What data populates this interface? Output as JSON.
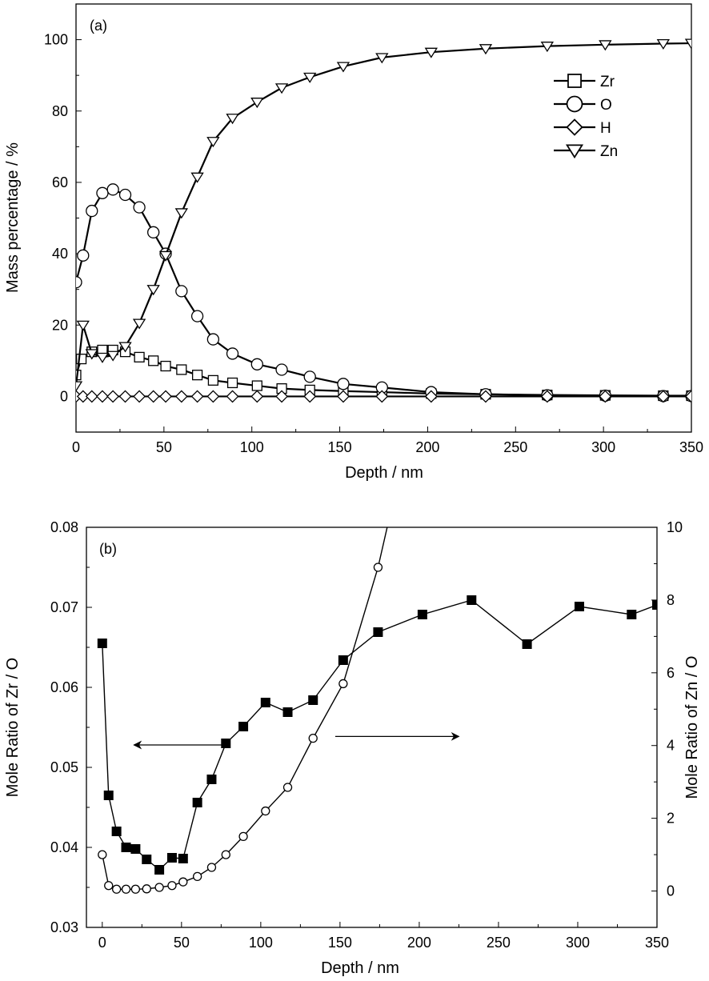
{
  "chart_data": [
    {
      "type": "line",
      "panel_label": "(a)",
      "xlabel": "Depth / nm",
      "ylabel": "Mass percentage / %",
      "xlim": [
        0,
        350
      ],
      "ylim": [
        -10,
        110
      ],
      "xticks": [
        0,
        50,
        100,
        150,
        200,
        250,
        300,
        350
      ],
      "yticks": [
        0,
        20,
        40,
        60,
        80,
        100
      ],
      "legend_position": "top-right",
      "series": [
        {
          "name": "Zr",
          "marker": "square",
          "x": [
            0,
            3,
            9,
            15,
            21,
            28,
            36,
            44,
            51,
            60,
            69,
            78,
            89,
            103,
            117,
            133,
            152,
            174,
            202,
            233,
            268,
            301,
            334,
            350
          ],
          "y": [
            6,
            10.5,
            12.5,
            13,
            13,
            12.5,
            11,
            10,
            8.5,
            7.5,
            6,
            4.5,
            3.8,
            3,
            2.2,
            1.8,
            1.5,
            1.2,
            0.8,
            0.6,
            0.4,
            0.3,
            0.2,
            0.2
          ]
        },
        {
          "name": "O",
          "marker": "circle",
          "x": [
            0,
            4,
            9,
            15,
            21,
            28,
            36,
            44,
            51,
            60,
            69,
            78,
            89,
            103,
            117,
            133,
            152,
            174,
            202,
            233,
            268,
            301,
            334,
            350
          ],
          "y": [
            32,
            39.5,
            52,
            57,
            58,
            56.5,
            53,
            46,
            40,
            29.5,
            22.5,
            16,
            12,
            9,
            7.5,
            5.5,
            3.5,
            2.5,
            1.2,
            0.6,
            0.3,
            0.2,
            0.1,
            0.1
          ]
        },
        {
          "name": "H",
          "marker": "diamond",
          "x": [
            0,
            4,
            9,
            15,
            21,
            28,
            36,
            44,
            51,
            60,
            69,
            78,
            89,
            103,
            117,
            133,
            152,
            174,
            202,
            233,
            268,
            301,
            334,
            350
          ],
          "y": [
            0,
            0,
            0,
            0,
            0,
            0,
            0,
            0,
            0,
            0,
            0,
            0,
            0,
            0,
            0,
            0,
            0,
            0,
            0,
            0,
            0,
            0,
            0,
            0
          ]
        },
        {
          "name": "Zn",
          "marker": "triangle-down",
          "x": [
            0,
            4,
            9,
            15,
            21,
            28,
            36,
            44,
            51,
            60,
            69,
            78,
            89,
            103,
            117,
            133,
            152,
            174,
            202,
            233,
            268,
            301,
            334,
            350
          ],
          "y": [
            3,
            20,
            12,
            11,
            11.5,
            14,
            20.5,
            30,
            39.5,
            51.5,
            61.5,
            71.5,
            78,
            82.5,
            86.5,
            89.5,
            92.5,
            95,
            96.5,
            97.5,
            98.2,
            98.6,
            98.9,
            99
          ]
        }
      ]
    },
    {
      "type": "line",
      "panel_label": "(b)",
      "xlabel": "Depth / nm",
      "ylabel": "Mole Ratio of Zr / O",
      "y2label": "Mole Ratio of Zn / O",
      "xlim": [
        -10,
        350
      ],
      "ylim": [
        0.03,
        0.08
      ],
      "y2lim": [
        -1,
        10
      ],
      "xticks": [
        0,
        50,
        100,
        150,
        200,
        250,
        300,
        350
      ],
      "yticks": [
        0.03,
        0.04,
        0.05,
        0.06,
        0.07,
        0.08
      ],
      "yticklabels": [
        "0.03",
        "0.04",
        "0.05",
        "0.06",
        "0.07",
        "0.08"
      ],
      "y2ticks": [
        0,
        2,
        4,
        6,
        8,
        10
      ],
      "series": [
        {
          "axis": "left",
          "marker": "filled-square",
          "x": [
            0,
            4,
            9,
            15,
            21,
            28,
            36,
            44,
            51,
            60,
            69,
            78,
            89,
            103,
            117,
            133,
            152,
            174,
            202,
            233,
            268,
            301,
            334,
            350
          ],
          "y": [
            0.0655,
            0.0465,
            0.042,
            0.04,
            0.0398,
            0.0385,
            0.0372,
            0.0387,
            0.0386,
            0.0456,
            0.0485,
            0.053,
            0.0551,
            0.0581,
            0.0569,
            0.0584,
            0.0634,
            0.0669,
            0.0691,
            0.0709,
            0.0654,
            0.0701,
            0.0691,
            0.0703
          ]
        },
        {
          "axis": "right",
          "marker": "open-circle",
          "x": [
            0,
            4,
            9,
            15,
            21,
            28,
            36,
            44,
            51,
            60,
            69,
            78,
            89,
            103,
            117,
            133,
            152,
            174,
            185
          ],
          "y": [
            1.0,
            0.15,
            0.05,
            0.05,
            0.05,
            0.06,
            0.1,
            0.15,
            0.25,
            0.4,
            0.65,
            1.0,
            1.5,
            2.2,
            2.85,
            4.2,
            5.7,
            8.9,
            11
          ]
        }
      ],
      "annotations": [
        {
          "type": "arrow",
          "direction": "left",
          "x_from": 76,
          "x_to": 20,
          "y_left": 0.0528
        },
        {
          "type": "arrow",
          "direction": "right",
          "x_from": 147,
          "x_to": 225,
          "y_right": 4.25
        }
      ]
    }
  ]
}
